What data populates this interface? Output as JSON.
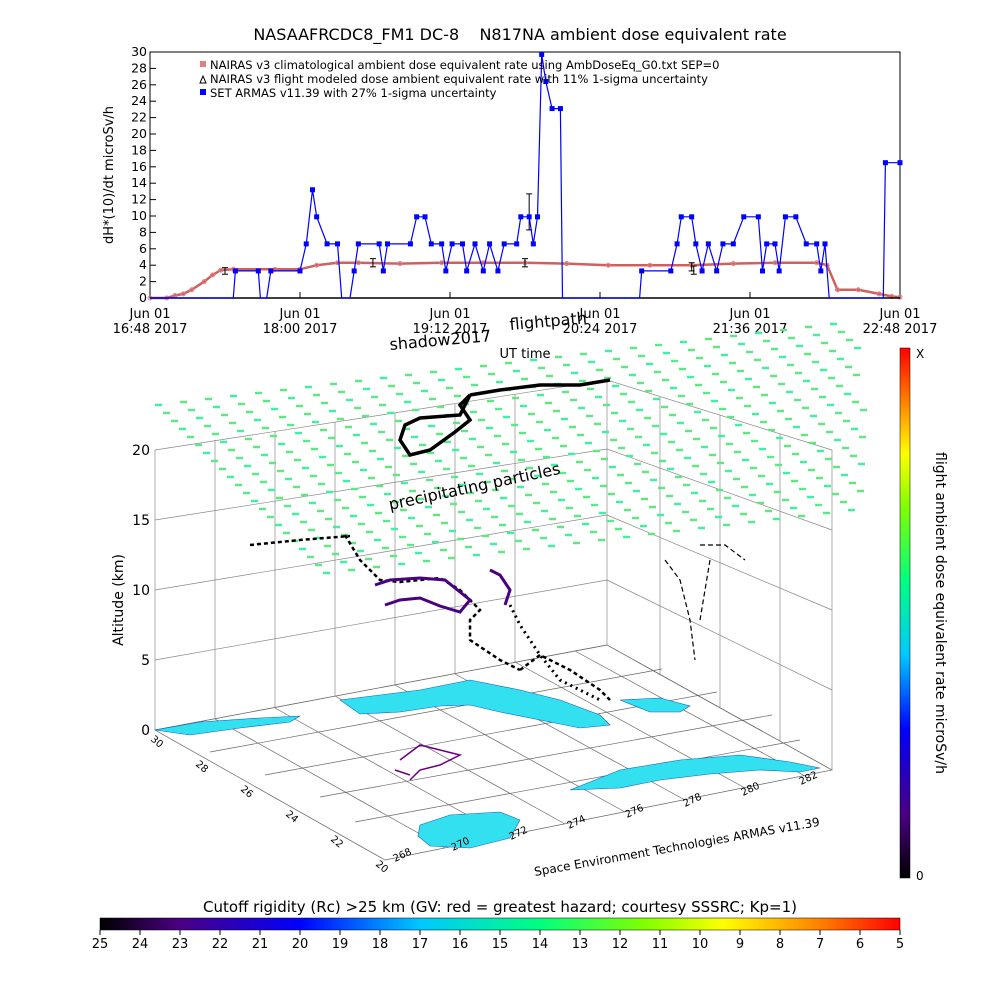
{
  "chart_data": [
    {
      "type": "line",
      "title": "NASAAFRCDC8_FM1 DC-8    N817NA ambient dose equivalent rate",
      "ylabel": "dH*(10)/dt microSv/h",
      "xlabel": "UT time",
      "ylim": [
        0,
        30
      ],
      "yticks": [
        "0",
        "2",
        "4",
        "6",
        "8",
        "10",
        "12",
        "14",
        "16",
        "18",
        "20",
        "22",
        "24",
        "26",
        "28",
        "30"
      ],
      "xticks": [
        {
          "l1": "Jun 01",
          "l2": "16:48 2017",
          "t": 0
        },
        {
          "l1": "Jun 01",
          "l2": "18:00 2017",
          "t": 72
        },
        {
          "l1": "Jun 01",
          "l2": "19:12 2017",
          "t": 144
        },
        {
          "l1": "Jun 01",
          "l2": "20:24 2017",
          "t": 216
        },
        {
          "l1": "Jun 01",
          "l2": "21:36 2017",
          "t": 288
        },
        {
          "l1": "Jun 01",
          "l2": "22:48 2017",
          "t": 360
        }
      ],
      "legend": [
        {
          "label": "NAIRAS v3 climatological ambient dose equivalent rate using AmbDoseEq_G0.txt SEP=0",
          "color": "#e08080"
        },
        {
          "label": "NAIRAS v3 flight modeled dose ambient equivalent rate with 11% 1-sigma uncertainty",
          "color": "#000000"
        },
        {
          "label": "SET ARMAS v11.39 with 27% 1-sigma uncertainty",
          "color": "#0000ff"
        }
      ],
      "series": [
        {
          "name": "NAIRAS v3 climatological",
          "color": "#d06060",
          "points": [
            [
              0,
              0
            ],
            [
              8,
              0
            ],
            [
              12,
              0.3
            ],
            [
              16,
              0.5
            ],
            [
              20,
              1
            ],
            [
              26,
              2
            ],
            [
              30,
              2.8
            ],
            [
              34,
              3.4
            ],
            [
              40,
              3.5
            ],
            [
              60,
              3.5
            ],
            [
              72,
              3.5
            ],
            [
              80,
              4
            ],
            [
              90,
              4.3
            ],
            [
              100,
              4.3
            ],
            [
              120,
              4.2
            ],
            [
              140,
              4.3
            ],
            [
              160,
              4.3
            ],
            [
              180,
              4.3
            ],
            [
              200,
              4.2
            ],
            [
              220,
              4
            ],
            [
              240,
              4
            ],
            [
              260,
              4
            ],
            [
              280,
              4.2
            ],
            [
              300,
              4.3
            ],
            [
              320,
              4.3
            ],
            [
              325,
              4
            ],
            [
              330,
              1
            ],
            [
              340,
              1
            ],
            [
              350,
              0.5
            ],
            [
              356,
              0.2
            ],
            [
              360,
              0.1
            ]
          ]
        },
        {
          "name": "NAIRAS v3 flight modeled",
          "color": "#000000",
          "points": [
            [
              0,
              0
            ],
            [
              360,
              0
            ]
          ],
          "error_bars": [
            [
              36,
              3.3,
              0.4
            ],
            [
              107,
              4.3,
              0.5
            ],
            [
              180,
              4.3,
              0.5
            ],
            [
              182,
              10.5,
              2.2
            ],
            [
              260,
              3.8,
              0.5
            ],
            [
              261,
              3.4,
              0.5
            ]
          ]
        },
        {
          "name": "SET ARMAS v11.39",
          "color": "#0000ff",
          "points": [
            [
              0,
              0
            ],
            [
              40,
              0
            ],
            [
              41,
              3.3
            ],
            [
              52,
              3.3
            ],
            [
              53,
              0
            ],
            [
              56,
              0
            ],
            [
              58,
              3.3
            ],
            [
              72,
              3.3
            ],
            [
              75,
              6.6
            ],
            [
              78,
              13.2
            ],
            [
              80,
              9.9
            ],
            [
              85,
              6.6
            ],
            [
              90,
              6.6
            ],
            [
              92,
              0
            ],
            [
              96,
              0
            ],
            [
              98,
              3.3
            ],
            [
              100,
              6.6
            ],
            [
              110,
              6.6
            ],
            [
              112,
              3.3
            ],
            [
              114,
              6.6
            ],
            [
              125,
              6.6
            ],
            [
              128,
              9.9
            ],
            [
              132,
              9.9
            ],
            [
              135,
              6.6
            ],
            [
              140,
              6.6
            ],
            [
              142,
              3.3
            ],
            [
              145,
              6.6
            ],
            [
              150,
              6.6
            ],
            [
              152,
              3.3
            ],
            [
              156,
              6.6
            ],
            [
              160,
              3.3
            ],
            [
              163,
              6.6
            ],
            [
              167,
              3.3
            ],
            [
              170,
              6.6
            ],
            [
              176,
              6.6
            ],
            [
              178,
              9.9
            ],
            [
              182,
              9.9
            ],
            [
              184,
              6.6
            ],
            [
              186,
              9.9
            ],
            [
              188,
              29.7
            ],
            [
              190,
              26.4
            ],
            [
              193,
              23.1
            ],
            [
              197,
              23.1
            ],
            [
              198,
              0
            ],
            [
              210,
              0
            ],
            [
              230,
              0
            ],
            [
              235,
              0
            ],
            [
              236,
              3.3
            ],
            [
              250,
              3.3
            ],
            [
              253,
              6.6
            ],
            [
              255,
              9.9
            ],
            [
              260,
              9.9
            ],
            [
              262,
              6.6
            ],
            [
              265,
              3.3
            ],
            [
              268,
              6.6
            ],
            [
              272,
              3.3
            ],
            [
              275,
              6.6
            ],
            [
              280,
              6.6
            ],
            [
              285,
              9.9
            ],
            [
              292,
              9.9
            ],
            [
              294,
              3.3
            ],
            [
              296,
              6.6
            ],
            [
              300,
              6.6
            ],
            [
              302,
              3.3
            ],
            [
              305,
              9.9
            ],
            [
              310,
              9.9
            ],
            [
              315,
              6.6
            ],
            [
              320,
              6.6
            ],
            [
              322,
              3.3
            ],
            [
              324,
              6.6
            ],
            [
              326,
              0
            ],
            [
              345,
              0
            ],
            [
              352,
              0
            ],
            [
              353,
              16.5
            ],
            [
              360,
              16.5
            ]
          ]
        }
      ]
    },
    {
      "type": "scatter",
      "subtype": "3d-trajectory",
      "zlabel": "Altitude (km)",
      "zticks": [
        "0",
        "5",
        "10",
        "15",
        "20"
      ],
      "yticks": [
        "20",
        "22",
        "24",
        "26",
        "28",
        "30"
      ],
      "xticks": [
        "268",
        "270",
        "272",
        "274",
        "276",
        "278",
        "280",
        "282"
      ],
      "annotations": [
        "flightpath",
        "shadow2017",
        "precipitating particles",
        "Space Environment Technologies ARMAS v11.39"
      ],
      "colorbar_right": {
        "label": "flight ambient dose equivalent rate microSv/h",
        "top": "X",
        "bottom": "0"
      },
      "colorbar_bottom": {
        "label": "Cutoff rigidity (Rc) >25 km (GV: red = greatest hazard; courtesy SSSRC; Kp=1)",
        "ticks": [
          "25",
          "24",
          "23",
          "22",
          "21",
          "20",
          "19",
          "18",
          "17",
          "16",
          "15",
          "14",
          "13",
          "12",
          "11",
          "10",
          "9",
          "8",
          "7",
          "6",
          "5"
        ]
      }
    }
  ]
}
